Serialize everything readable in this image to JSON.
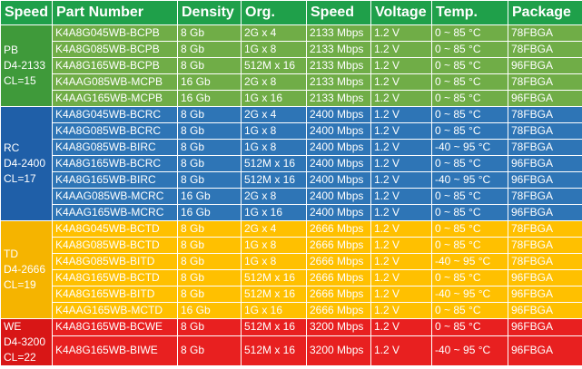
{
  "headers": {
    "speed_grade": "Speed",
    "part_number": "Part Number",
    "density": "Density",
    "org": "Org.",
    "speed": "Speed",
    "voltage": "Voltage",
    "temp": "Temp.",
    "package": "Package"
  },
  "colors": {
    "header": "#1FA04A",
    "pb": "#70AD47",
    "rc": "#2E75B6",
    "td": "#FFC000",
    "we": "#E82020"
  },
  "groups": [
    {
      "code": "PB",
      "grade": "D4-2133",
      "cl": "CL=15",
      "rows": [
        {
          "part": "K4A8G045WB-BCPB",
          "density": "8 Gb",
          "org": "2G x 4",
          "speed": "2133 Mbps",
          "voltage": "1.2 V",
          "temp": "0 ~ 85 °C",
          "package": "78FBGA"
        },
        {
          "part": "K4A8G085WB-BCPB",
          "density": "8 Gb",
          "org": "1G x 8",
          "speed": "2133 Mbps",
          "voltage": "1.2 V",
          "temp": "0 ~ 85 °C",
          "package": "78FBGA"
        },
        {
          "part": "K4A8G165WB-BCPB",
          "density": "8 Gb",
          "org": "512M x 16",
          "speed": "2133 Mbps",
          "voltage": "1.2 V",
          "temp": "0 ~ 85 °C",
          "package": "96FBGA"
        },
        {
          "part": "K4AAG085WB-MCPB",
          "density": "16 Gb",
          "org": "2G x 8",
          "speed": "2133 Mbps",
          "voltage": "1.2 V",
          "temp": "0 ~ 85 °C",
          "package": "78FBGA"
        },
        {
          "part": "K4AAG165WB-MCPB",
          "density": "16 Gb",
          "org": "1G x 16",
          "speed": "2133 Mbps",
          "voltage": "1.2 V",
          "temp": "0 ~ 85 °C",
          "package": "96FBGA"
        }
      ]
    },
    {
      "code": "RC",
      "grade": "D4-2400",
      "cl": "CL=17",
      "rows": [
        {
          "part": "K4A8G045WB-BCRC",
          "density": "8 Gb",
          "org": "2G x 4",
          "speed": "2400 Mbps",
          "voltage": "1.2 V",
          "temp": "0 ~ 85 °C",
          "package": "78FBGA"
        },
        {
          "part": "K4A8G085WB-BCRC",
          "density": "8 Gb",
          "org": "1G x 8",
          "speed": "2400 Mbps",
          "voltage": "1.2 V",
          "temp": "0 ~ 85 °C",
          "package": "78FBGA"
        },
        {
          "part": "K4A8G085WB-BIRC",
          "density": "8 Gb",
          "org": "1G x 8",
          "speed": "2400 Mbps",
          "voltage": "1.2 V",
          "temp": "-40 ~ 95 °C",
          "package": "78FBGA"
        },
        {
          "part": "K4A8G165WB-BCRC",
          "density": "8 Gb",
          "org": "512M x 16",
          "speed": "2400 Mbps",
          "voltage": "1.2 V",
          "temp": "0 ~ 85 °C",
          "package": "96FBGA"
        },
        {
          "part": "K4A8G165WB-BIRC",
          "density": "8 Gb",
          "org": "512M x 16",
          "speed": "2400 Mbps",
          "voltage": "1.2 V",
          "temp": "-40 ~ 95 °C",
          "package": "96FBGA"
        },
        {
          "part": "K4AAG085WB-MCRC",
          "density": "16 Gb",
          "org": "2G x 8",
          "speed": "2400 Mbps",
          "voltage": "1.2 V",
          "temp": "0 ~ 85 °C",
          "package": "78FBGA"
        },
        {
          "part": "K4AAG165WB-MCRC",
          "density": "16 Gb",
          "org": "1G x 16",
          "speed": "2400 Mbps",
          "voltage": "1.2 V",
          "temp": "0 ~ 85 °C",
          "package": "96FBGA"
        }
      ]
    },
    {
      "code": "TD",
      "grade": "D4-2666",
      "cl": "CL=19",
      "rows": [
        {
          "part": "K4A8G045WB-BCTD",
          "density": "8 Gb",
          "org": "2G x 4",
          "speed": "2666 Mbps",
          "voltage": "1.2 V",
          "temp": "0 ~ 85 °C",
          "package": "78FBGA"
        },
        {
          "part": "K4A8G085WB-BCTD",
          "density": "8 Gb",
          "org": "1G x 8",
          "speed": "2666 Mbps",
          "voltage": "1.2 V",
          "temp": "0 ~ 85 °C",
          "package": "78FBGA"
        },
        {
          "part": "K4A8G085WB-BITD",
          "density": "8 Gb",
          "org": "1G x 8",
          "speed": "2666 Mbps",
          "voltage": "1.2 V",
          "temp": "-40 ~ 95 °C",
          "package": "78FBGA"
        },
        {
          "part": "K4A8G165WB-BCTD",
          "density": "8 Gb",
          "org": "512M x 16",
          "speed": "2666 Mbps",
          "voltage": "1.2 V",
          "temp": "0 ~ 85 °C",
          "package": "96FBGA"
        },
        {
          "part": "K4A8G165WB-BITD",
          "density": "8 Gb",
          "org": "512M x 16",
          "speed": "2666 Mbps",
          "voltage": "1.2 V",
          "temp": "-40 ~ 95 °C",
          "package": "96FBGA"
        },
        {
          "part": "K4AAG165WB-MCTD",
          "density": "16 Gb",
          "org": "1G x 16",
          "speed": "2666 Mbps",
          "voltage": "1.2 V",
          "temp": "0 ~ 85 °C",
          "package": "96FBGA"
        }
      ]
    },
    {
      "code": "WE",
      "grade": "D4-3200",
      "cl": "CL=22",
      "rows": [
        {
          "part": "K4A8G165WB-BCWE",
          "density": "8 Gb",
          "org": "512M x 16",
          "speed": "3200 Mbps",
          "voltage": "1.2 V",
          "temp": "0 ~ 85 °C",
          "package": "96FBGA"
        },
        {
          "part": "K4A8G165WB-BIWE",
          "density": "8 Gb",
          "org": "512M x 16",
          "speed": "3200 Mbps",
          "voltage": "1.2 V",
          "temp": "-40 ~ 95 °C",
          "package": "96FBGA"
        }
      ]
    }
  ]
}
